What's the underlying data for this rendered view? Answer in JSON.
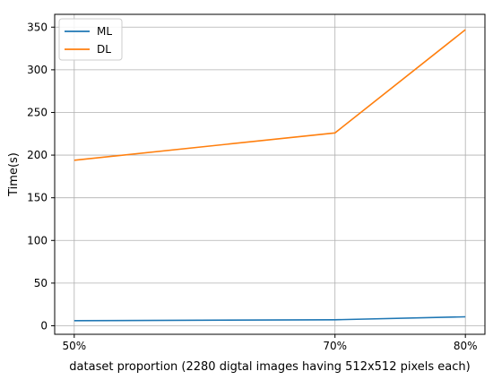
{
  "chart_data": {
    "type": "line",
    "title": "",
    "xlabel": "dataset proportion (2280 digtal images having 512x512 pixels each)",
    "ylabel": "Time(s)",
    "x": [
      50,
      70,
      80
    ],
    "x_tick_labels": [
      "50%",
      "70%",
      "80%"
    ],
    "xlim": [
      48.5,
      81.5
    ],
    "ylim": [
      -10,
      365
    ],
    "y_ticks": [
      0,
      50,
      100,
      150,
      200,
      250,
      300,
      350
    ],
    "grid": true,
    "legend_position": "top-left",
    "series": [
      {
        "name": "ML",
        "values": [
          6,
          7,
          10.5
        ],
        "color": "#1f77b4"
      },
      {
        "name": "DL",
        "values": [
          194,
          226,
          347
        ],
        "color": "#ff7f0e"
      }
    ]
  }
}
